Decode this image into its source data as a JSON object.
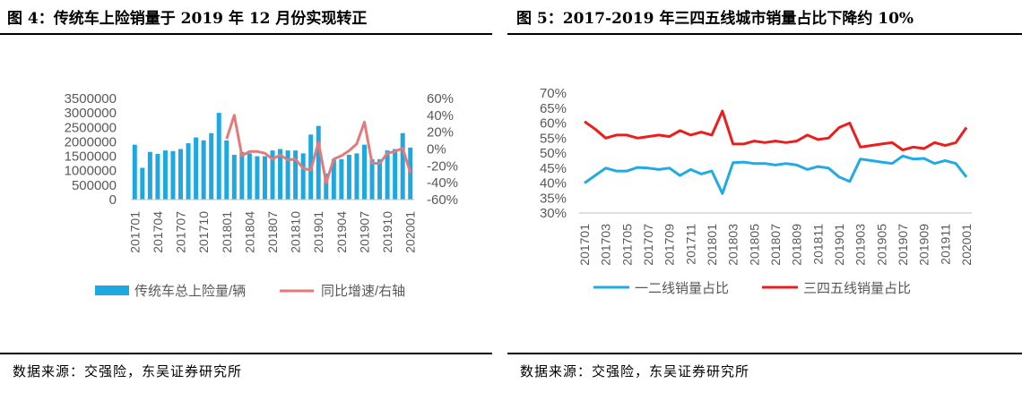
{
  "fig4": {
    "title": "图 4：传统车上险销量于 2019 年 12 月份实现转正",
    "source": "数据来源：交强险，东吴证券研究所",
    "legend_bar": "传统车总上险量/辆",
    "legend_line": "同比增速/右轴"
  },
  "fig5": {
    "title": "图 5：2017-2019 年三四五线城市销量占比下降约 10%",
    "source": "数据来源：交强险，东吴证券研究所"
  },
  "colors": {
    "bar": "#1fa8e0",
    "growth_line": "#e47a7a",
    "line_blue": "#22aae3",
    "line_red": "#ee1c1c",
    "axis": "#bfbfbf",
    "text": "#595959"
  },
  "chart_data": [
    {
      "type": "bar",
      "x": [
        "201701",
        "201702",
        "201703",
        "201704",
        "201705",
        "201706",
        "201707",
        "201708",
        "201709",
        "201710",
        "201711",
        "201712",
        "201801",
        "201802",
        "201803",
        "201804",
        "201805",
        "201806",
        "201807",
        "201808",
        "201809",
        "201810",
        "201811",
        "201812",
        "201901",
        "201902",
        "201903",
        "201904",
        "201905",
        "201906",
        "201907",
        "201908",
        "201909",
        "201910",
        "201911",
        "201912",
        "202001"
      ],
      "xtick_labels": [
        "201701",
        "201704",
        "201707",
        "201710",
        "201801",
        "201804",
        "201807",
        "201810",
        "201901",
        "201904",
        "201907",
        "201910",
        "202001"
      ],
      "yticks_left": [
        "3500000",
        "3000000",
        "2500000",
        "2000000",
        "1500000",
        "1000000",
        "500000",
        "0"
      ],
      "yticks_right": [
        "60%",
        "40%",
        "20%",
        "0%",
        "-20%",
        "-40%",
        "-60%"
      ],
      "ylim": [
        0,
        3500000
      ],
      "y2lim": [
        -60,
        60
      ],
      "legend_position": "bottom",
      "series": [
        {
          "name": "传统车总上险量/辆",
          "axis": "left",
          "kind": "bar",
          "values": [
            1900000,
            1100000,
            1650000,
            1580000,
            1700000,
            1680000,
            1750000,
            1950000,
            2150000,
            2050000,
            2300000,
            3000000,
            2050000,
            1550000,
            1650000,
            1600000,
            1500000,
            1500000,
            1700000,
            1750000,
            1700000,
            1700000,
            1600000,
            2250000,
            2550000,
            900000,
            1400000,
            1400000,
            1550000,
            1600000,
            1900000,
            1400000,
            1400000,
            1700000,
            1750000,
            2300000,
            1800000
          ]
        },
        {
          "name": "同比增速/右轴",
          "axis": "right",
          "kind": "line",
          "values": [
            null,
            null,
            null,
            null,
            null,
            null,
            null,
            null,
            null,
            null,
            null,
            null,
            12,
            40,
            -8,
            -3,
            -3,
            -5,
            -12,
            -7,
            -13,
            -12,
            -23,
            -25,
            8,
            -40,
            -12,
            -8,
            -2,
            6,
            32,
            -17,
            -17,
            -5,
            -3,
            1,
            -28
          ]
        }
      ]
    },
    {
      "type": "line",
      "x": [
        "201701",
        "201702",
        "201703",
        "201704",
        "201705",
        "201706",
        "201707",
        "201708",
        "201709",
        "201710",
        "201711",
        "201712",
        "201801",
        "201802",
        "201803",
        "201804",
        "201805",
        "201806",
        "201807",
        "201808",
        "201809",
        "201810",
        "201811",
        "201812",
        "201901",
        "201902",
        "201903",
        "201904",
        "201905",
        "201906",
        "201907",
        "201908",
        "201909",
        "201910",
        "201911",
        "201912",
        "202001"
      ],
      "xtick_labels": [
        "201701",
        "201703",
        "201705",
        "201707",
        "201709",
        "201711",
        "201801",
        "201803",
        "201805",
        "201807",
        "201809",
        "201811",
        "201901",
        "201903",
        "201905",
        "201907",
        "201909",
        "201911",
        "202001"
      ],
      "yticks": [
        "70%",
        "65%",
        "60%",
        "55%",
        "50%",
        "45%",
        "40%",
        "35%",
        "30%"
      ],
      "ylim": [
        30,
        70
      ],
      "legend_position": "bottom",
      "series": [
        {
          "name": "一二线销量占比",
          "values": [
            40,
            42.5,
            45,
            44,
            44,
            45.2,
            45,
            44.5,
            45,
            42.5,
            44.5,
            43,
            44,
            36.5,
            46.8,
            47,
            46.5,
            46.5,
            46,
            46.5,
            46,
            44.5,
            45.5,
            45,
            42,
            40.5,
            48,
            47.5,
            47,
            46.5,
            49,
            48,
            48.2,
            46.5,
            47.5,
            46.5,
            42
          ]
        },
        {
          "name": "三四五线销量占比",
          "values": [
            60.5,
            58,
            55,
            56,
            56,
            55,
            55.5,
            56,
            55.5,
            57.5,
            56,
            57,
            56,
            64,
            53,
            53,
            54,
            53.5,
            54,
            53.5,
            54,
            56,
            54.5,
            55,
            58.5,
            60,
            52,
            52.5,
            53,
            53.5,
            51,
            52,
            51.5,
            53.5,
            52.5,
            53.5,
            58.5
          ]
        }
      ]
    }
  ]
}
